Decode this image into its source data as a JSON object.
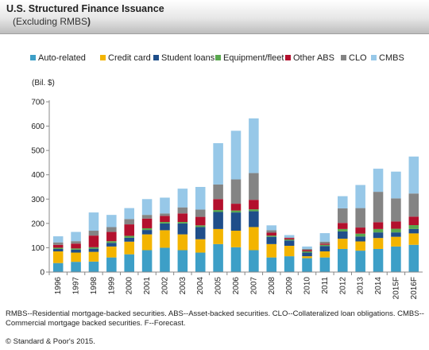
{
  "header": {
    "title": "U.S. Structured Finance Issuance",
    "subtitle": "(Excluding RMBS",
    "subtitle_close": ")"
  },
  "chart_data": {
    "type": "bar",
    "stacked": true,
    "ylabel": "(Bil. $)",
    "ylim": [
      0,
      700
    ],
    "yticks": [
      0,
      100,
      200,
      300,
      400,
      500,
      600,
      700
    ],
    "grid": false,
    "legend_position": "top",
    "categories": [
      "1996",
      "1997",
      "1998",
      "1999",
      "2000",
      "2001",
      "2002",
      "2003",
      "2004",
      "2005",
      "2006",
      "2007",
      "2008",
      "2009",
      "2010",
      "2011",
      "2012",
      "2013",
      "2014",
      "2015F",
      "2016F"
    ],
    "series": [
      {
        "name": "Auto-related",
        "color": "#3d9fc7",
        "values": [
          37,
          42,
          43,
          60,
          73,
          90,
          100,
          90,
          80,
          115,
          102,
          90,
          60,
          65,
          57,
          60,
          95,
          88,
          95,
          105,
          112
        ]
      },
      {
        "name": "Credit card",
        "color": "#f3b400",
        "values": [
          48,
          38,
          40,
          45,
          52,
          65,
          72,
          65,
          55,
          62,
          68,
          95,
          55,
          43,
          8,
          25,
          42,
          38,
          45,
          40,
          47
        ]
      },
      {
        "name": "Student loans",
        "color": "#1f4e8a",
        "values": [
          10,
          12,
          13,
          15,
          16,
          18,
          28,
          45,
          50,
          70,
          75,
          65,
          30,
          22,
          15,
          22,
          30,
          20,
          23,
          18,
          18
        ]
      },
      {
        "name": "Equipment/fleet",
        "color": "#5aa84f",
        "values": [
          5,
          5,
          6,
          7,
          8,
          7,
          6,
          6,
          7,
          8,
          8,
          8,
          5,
          4,
          5,
          5,
          10,
          12,
          14,
          15,
          16
        ]
      },
      {
        "name": "Other ABS",
        "color": "#b3102d",
        "values": [
          12,
          20,
          48,
          38,
          47,
          40,
          25,
          35,
          35,
          45,
          28,
          39,
          12,
          6,
          5,
          5,
          25,
          25,
          28,
          30,
          35
        ]
      },
      {
        "name": "CLO",
        "color": "#848484",
        "values": [
          10,
          10,
          20,
          20,
          22,
          15,
          10,
          25,
          30,
          60,
          100,
          110,
          10,
          2,
          5,
          8,
          60,
          80,
          125,
          95,
          95
        ]
      },
      {
        "name": "CMBS",
        "color": "#97c8e8",
        "values": [
          25,
          38,
          75,
          50,
          45,
          65,
          65,
          77,
          93,
          170,
          200,
          225,
          20,
          10,
          10,
          35,
          50,
          95,
          95,
          110,
          152
        ]
      }
    ]
  },
  "footnote": "RMBS--Residential mortgage-backed securities. ABS--Asset-backed securities. CLO--Collateralized loan obligations. CMBS--Commercial mortgage backed securities. F--Forecast.",
  "copyright": "© Standard & Poor's 2015."
}
